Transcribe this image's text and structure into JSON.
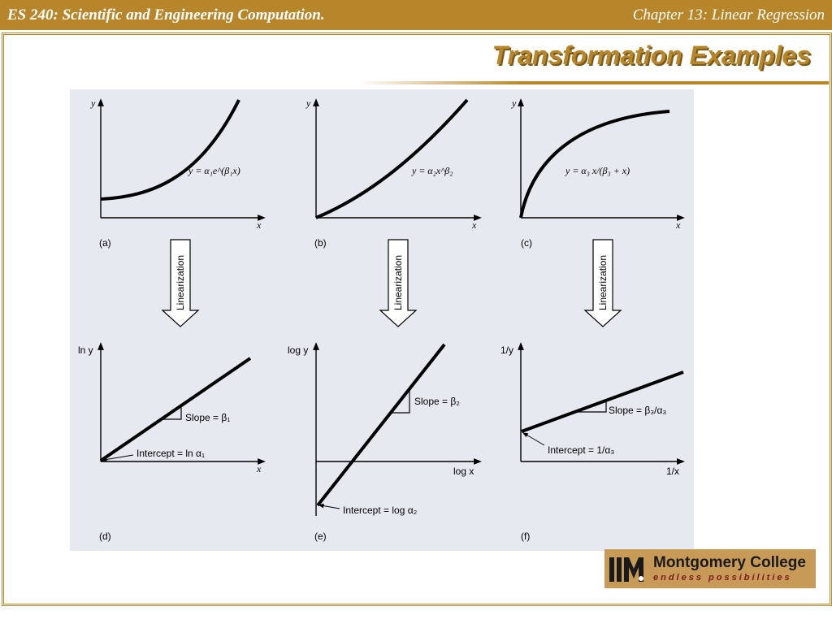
{
  "header": {
    "left": "ES 240: Scientific and Engineering Computation.",
    "right": "Chapter 13: Linear Regression"
  },
  "slide": {
    "title": "Transformation Examples"
  },
  "figure": {
    "panels": [
      {
        "id": "a",
        "label": "(a)",
        "y_axis": "y",
        "x_axis": "x",
        "equation": "y = α₁e^(β₁x)"
      },
      {
        "id": "b",
        "label": "(b)",
        "y_axis": "y",
        "x_axis": "x",
        "equation": "y = α₂x^β₂"
      },
      {
        "id": "c",
        "label": "(c)",
        "y_axis": "y",
        "x_axis": "x",
        "equation": "y = α₃ x/(β₃ + x)"
      },
      {
        "id": "d",
        "label": "(d)",
        "y_axis": "ln y",
        "x_axis": "x",
        "slope": "Slope = β₁",
        "intercept": "Intercept = ln α₁"
      },
      {
        "id": "e",
        "label": "(e)",
        "y_axis": "log y",
        "x_axis": "log x",
        "slope": "Slope = β₂",
        "intercept": "Intercept = log α₂"
      },
      {
        "id": "f",
        "label": "(f)",
        "y_axis": "1/y",
        "x_axis": "1/x",
        "slope": "Slope = β₃/α₃",
        "intercept": "Intercept = 1/α₃"
      }
    ],
    "arrow_label": "Linearization"
  },
  "logo": {
    "name": "Montgomery College",
    "tagline": "endless possibilities"
  },
  "colors": {
    "accent": "#b8862a",
    "figure_bg": "#e6e9f0"
  }
}
